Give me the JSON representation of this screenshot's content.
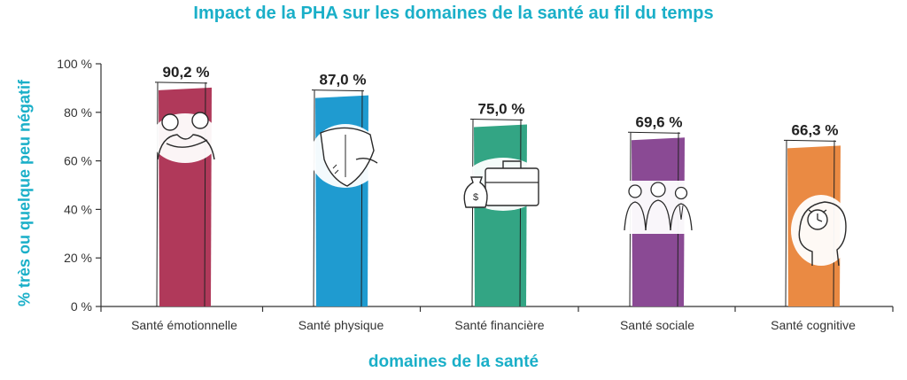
{
  "chart_data": {
    "type": "bar",
    "title": "Impact de la PHA sur les domaines de la santé au fil du temps",
    "xlabel": "domaines de la santé",
    "ylabel": "% très ou quelque peu négatif",
    "categories": [
      "Santé émotionnelle",
      "Santé physique",
      "Santé financière",
      "Santé sociale",
      "Santé cognitive"
    ],
    "values": [
      90.2,
      87.0,
      75.0,
      69.6,
      66.3
    ],
    "data_labels": [
      "90,2 %",
      "87,0 %",
      "75,0 %",
      "69,6 %",
      "66,3 %"
    ],
    "yticks": [
      0,
      20,
      40,
      60,
      80,
      100
    ],
    "ytick_labels": [
      "0 %",
      "20 %",
      "40 %",
      "60 %",
      "80 %",
      "100 %"
    ],
    "ylim": [
      0,
      100
    ],
    "colors": [
      "#b0395a",
      "#1f9bd0",
      "#33a584",
      "#8a4a94",
      "#ea8a43"
    ],
    "icons": [
      "hugging-people-icon",
      "back-pain-icon",
      "money-briefcase-icon",
      "group-of-people-icon",
      "head-with-clock-icon"
    ],
    "grid": false,
    "legend": "none"
  }
}
